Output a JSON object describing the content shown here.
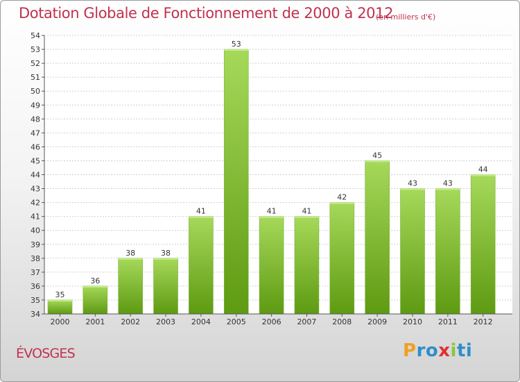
{
  "header": {
    "title": "Dotation Globale de Fonctionnement de 2000 à 2012",
    "unit": "(en milliers d'€)"
  },
  "footer": {
    "commune": "ÉVOSGES",
    "brand": {
      "letters": [
        "P",
        "r",
        "o",
        "x",
        "i",
        "t",
        "i"
      ],
      "colors": [
        "#f0a020",
        "#2f8ec9",
        "#2f8ec9",
        "#e03030",
        "#8cc63f",
        "#2f8ec9",
        "#2f8ec9"
      ]
    }
  },
  "colors": {
    "bar_top": "#a6d95a",
    "bar_bottom": "#5e9a12",
    "title": "#c0314e"
  },
  "chart_data": {
    "type": "bar",
    "title": "Dotation Globale de Fonctionnement de 2000 à 2012",
    "subtitle": "(en milliers d'€)",
    "categories": [
      "2000",
      "2001",
      "2002",
      "2003",
      "2004",
      "2005",
      "2006",
      "2007",
      "2008",
      "2009",
      "2010",
      "2011",
      "2012"
    ],
    "values": [
      35,
      36,
      38,
      38,
      41,
      53,
      41,
      41,
      42,
      45,
      43,
      43,
      44
    ],
    "xlabel": "",
    "ylabel": "",
    "ylim": [
      34,
      54
    ],
    "yticks": [
      34,
      35,
      36,
      37,
      38,
      39,
      40,
      41,
      42,
      43,
      44,
      45,
      46,
      47,
      48,
      49,
      50,
      51,
      52,
      53,
      54
    ],
    "grid": true,
    "data_labels": true,
    "legend": "none"
  }
}
